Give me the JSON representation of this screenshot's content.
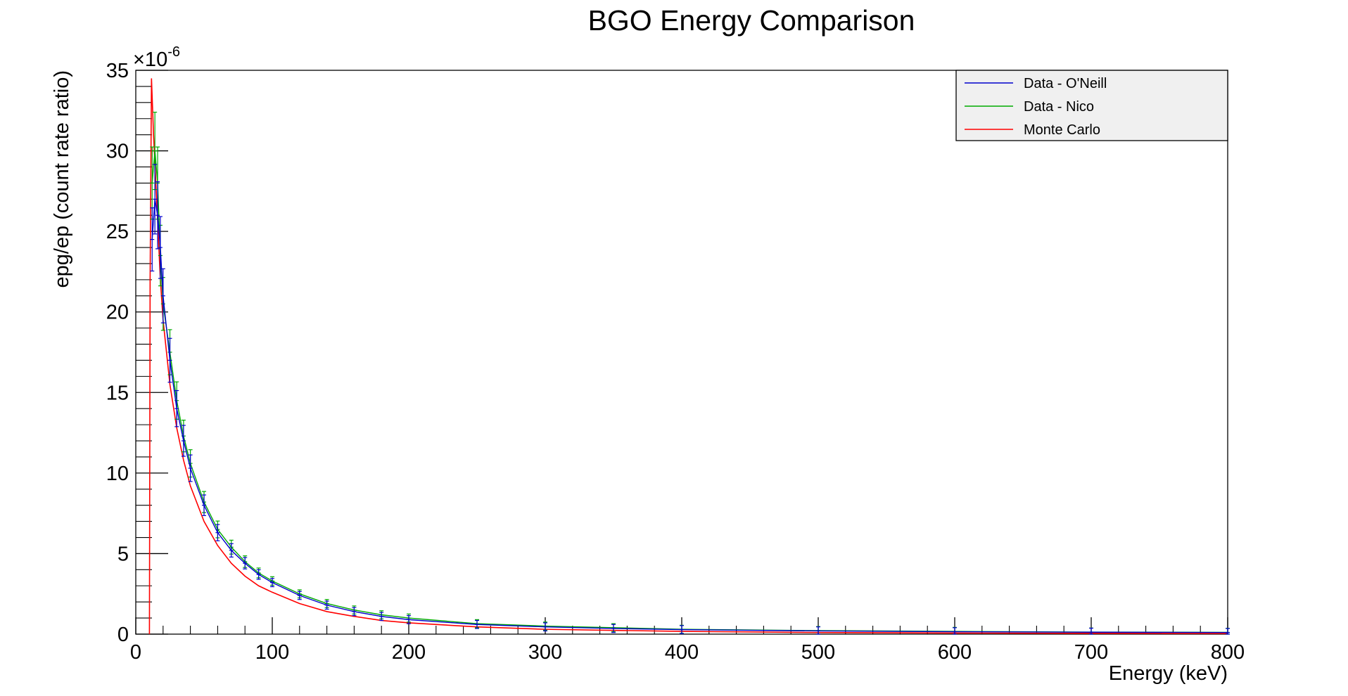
{
  "chart_data": {
    "type": "line",
    "title": "BGO Energy Comparison",
    "xlabel": "Energy (keV)",
    "ylabel": "epg/ep (count rate ratio)",
    "y_multiplier": "×10",
    "y_exponent": "-6",
    "xlim": [
      0,
      800
    ],
    "ylim": [
      0,
      35
    ],
    "x_ticks": [
      0,
      100,
      200,
      300,
      400,
      500,
      600,
      700,
      800
    ],
    "y_ticks": [
      0,
      5,
      10,
      15,
      20,
      25,
      30,
      35
    ],
    "grid": false,
    "legend_position": "top-right",
    "series": [
      {
        "name": "Data - O'Neill",
        "color": "#0000cc",
        "style": "points-with-error-bars",
        "points": [
          [
            12,
            24.5
          ],
          [
            14,
            27.0
          ],
          [
            16,
            26.0
          ],
          [
            18,
            24.0
          ],
          [
            20,
            21.0
          ],
          [
            25,
            17.0
          ],
          [
            30,
            14.0
          ],
          [
            35,
            12.0
          ],
          [
            40,
            10.3
          ],
          [
            50,
            8.0
          ],
          [
            60,
            6.3
          ],
          [
            70,
            5.2
          ],
          [
            80,
            4.4
          ],
          [
            90,
            3.7
          ],
          [
            100,
            3.2
          ],
          [
            120,
            2.4
          ],
          [
            140,
            1.8
          ],
          [
            160,
            1.4
          ],
          [
            180,
            1.1
          ],
          [
            200,
            0.9
          ],
          [
            250,
            0.6
          ],
          [
            300,
            0.45
          ],
          [
            350,
            0.35
          ],
          [
            400,
            0.28
          ],
          [
            500,
            0.2
          ],
          [
            600,
            0.15
          ],
          [
            700,
            0.12
          ],
          [
            800,
            0.1
          ]
        ]
      },
      {
        "name": "Data - Nico",
        "color": "#00aa00",
        "style": "points-with-error-bars",
        "points": [
          [
            12,
            28.0
          ],
          [
            14,
            30.0
          ],
          [
            16,
            28.0
          ],
          [
            18,
            23.5
          ],
          [
            20,
            20.5
          ],
          [
            25,
            17.5
          ],
          [
            30,
            14.5
          ],
          [
            35,
            12.3
          ],
          [
            40,
            10.6
          ],
          [
            50,
            8.2
          ],
          [
            60,
            6.5
          ],
          [
            70,
            5.4
          ],
          [
            80,
            4.5
          ],
          [
            90,
            3.8
          ],
          [
            100,
            3.3
          ],
          [
            120,
            2.5
          ],
          [
            140,
            1.9
          ],
          [
            160,
            1.5
          ],
          [
            180,
            1.2
          ],
          [
            200,
            1.0
          ],
          [
            250,
            0.65
          ],
          [
            300,
            0.5
          ],
          [
            350,
            0.4
          ],
          [
            400,
            0.3
          ],
          [
            500,
            0.22
          ],
          [
            600,
            0.17
          ],
          [
            700,
            0.13
          ],
          [
            800,
            0.11
          ]
        ]
      },
      {
        "name": "Monte Carlo",
        "color": "#ff0000",
        "style": "line",
        "points": [
          [
            10,
            0
          ],
          [
            10.5,
            22.0
          ],
          [
            11.5,
            34.5
          ],
          [
            13,
            31.0
          ],
          [
            15,
            27.5
          ],
          [
            18,
            22.0
          ],
          [
            20,
            19.5
          ],
          [
            25,
            15.5
          ],
          [
            30,
            12.8
          ],
          [
            35,
            10.8
          ],
          [
            40,
            9.2
          ],
          [
            50,
            7.0
          ],
          [
            60,
            5.5
          ],
          [
            70,
            4.4
          ],
          [
            80,
            3.6
          ],
          [
            90,
            3.0
          ],
          [
            100,
            2.6
          ],
          [
            120,
            1.9
          ],
          [
            140,
            1.4
          ],
          [
            160,
            1.1
          ],
          [
            180,
            0.85
          ],
          [
            200,
            0.7
          ],
          [
            250,
            0.45
          ],
          [
            300,
            0.3
          ],
          [
            400,
            0.17
          ],
          [
            500,
            0.1
          ],
          [
            600,
            0.07
          ],
          [
            700,
            0.05
          ],
          [
            800,
            0.04
          ]
        ]
      }
    ]
  }
}
